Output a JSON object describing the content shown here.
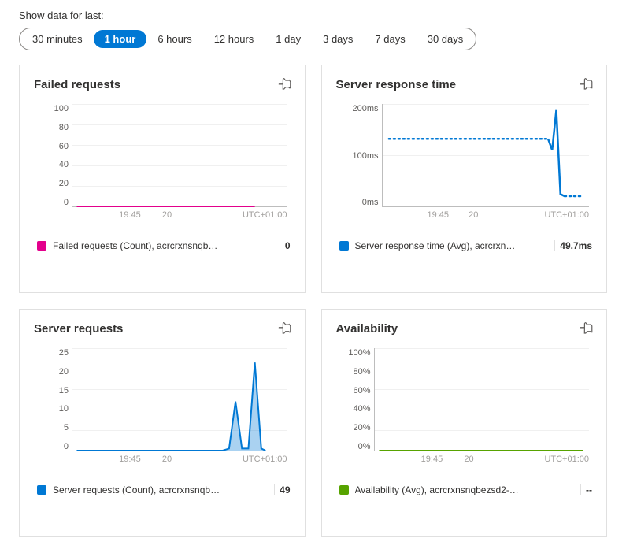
{
  "filter": {
    "label": "Show data for last:",
    "options": [
      "30 minutes",
      "1 hour",
      "6 hours",
      "12 hours",
      "1 day",
      "3 days",
      "7 days",
      "30 days"
    ],
    "selected_index": 1
  },
  "timezone_label": "UTC+01:00",
  "x_ticks": [
    "19:45",
    "20"
  ],
  "cards": [
    {
      "title": "Failed requests",
      "chart": {
        "type": "line",
        "ylim": [
          0,
          100
        ],
        "yticks": [
          "100",
          "80",
          "60",
          "40",
          "20",
          "0"
        ],
        "grid_color": "#f0f0f0",
        "series": [
          {
            "color": "#e3008c",
            "stroke_width": 2,
            "points": [
              [
                0.02,
                0
              ],
              [
                0.85,
                0
              ]
            ],
            "style": "solid"
          }
        ]
      },
      "legend": {
        "swatch_color": "#e3008c",
        "label": "Failed requests (Count), acrcrxnsnqb…",
        "value": "0"
      }
    },
    {
      "title": "Server response time",
      "chart": {
        "type": "line",
        "ylim": [
          0,
          250
        ],
        "yticks": [
          "200ms",
          "100ms",
          "0ms"
        ],
        "yticks_wide": true,
        "grid_color": "#f0f0f0",
        "series": [
          {
            "color": "#0078d4",
            "stroke_width": 2.5,
            "style": "dotted",
            "points": [
              [
                0.03,
                0.66
              ],
              [
                0.8,
                0.66
              ]
            ]
          },
          {
            "color": "#0078d4",
            "stroke_width": 2.5,
            "style": "solid",
            "points": [
              [
                0.8,
                0.66
              ],
              [
                0.82,
                0.55
              ],
              [
                0.84,
                0.94
              ],
              [
                0.86,
                0.12
              ],
              [
                0.88,
                0.1
              ]
            ]
          },
          {
            "color": "#0078d4",
            "stroke_width": 2.5,
            "style": "dotted",
            "points": [
              [
                0.88,
                0.1
              ],
              [
                0.97,
                0.1
              ]
            ]
          }
        ]
      },
      "legend": {
        "swatch_color": "#0078d4",
        "label": "Server response time (Avg), acrcrxn…",
        "value": "49.7ms"
      }
    },
    {
      "title": "Server requests",
      "chart": {
        "type": "area",
        "ylim": [
          0,
          25
        ],
        "yticks": [
          "25",
          "20",
          "15",
          "10",
          "5",
          "0"
        ],
        "grid_color": "#f0f0f0",
        "series": [
          {
            "color": "#0078d4",
            "fill": "#0078d455",
            "stroke_width": 2,
            "style": "solid",
            "points": [
              [
                0.02,
                0
              ],
              [
                0.7,
                0
              ],
              [
                0.73,
                0.02
              ],
              [
                0.76,
                0.48
              ],
              [
                0.79,
                0.02
              ],
              [
                0.82,
                0.02
              ],
              [
                0.85,
                0.86
              ],
              [
                0.88,
                0.02
              ],
              [
                0.9,
                0
              ]
            ]
          }
        ]
      },
      "legend": {
        "swatch_color": "#0078d4",
        "label": "Server requests (Count), acrcrxnsnqb…",
        "value": "49"
      }
    },
    {
      "title": "Availability",
      "chart": {
        "type": "line",
        "ylim": [
          0,
          100
        ],
        "yticks": [
          "100%",
          "80%",
          "60%",
          "40%",
          "20%",
          "0%"
        ],
        "grid_color": "#f0f0f0",
        "series": [
          {
            "color": "#57a300",
            "stroke_width": 2,
            "style": "solid",
            "points": [
              [
                0.02,
                0
              ],
              [
                0.97,
                0
              ]
            ]
          }
        ]
      },
      "legend": {
        "swatch_color": "#57a300",
        "label": "Availability (Avg), acrcrxnsnqbezsd2-…",
        "value": "--"
      }
    }
  ]
}
